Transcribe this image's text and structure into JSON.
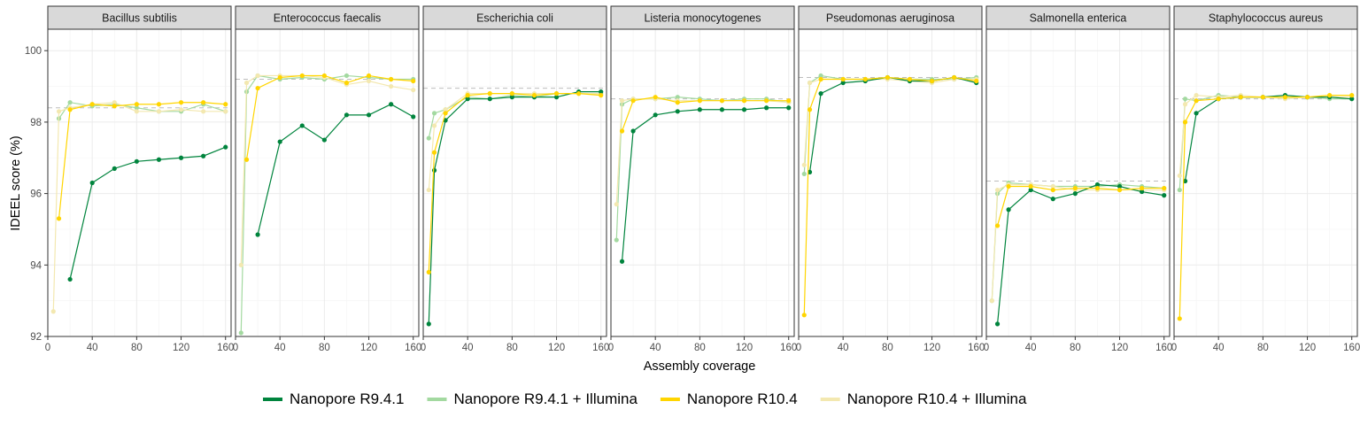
{
  "chart_data": {
    "type": "line",
    "xlabel": "Assembly coverage",
    "ylabel": "IDEEL score (%)",
    "xlim": [
      0,
      165
    ],
    "ylim": [
      92,
      100.6
    ],
    "x_ticks": [
      0,
      40,
      80,
      120,
      160
    ],
    "y_ticks": [
      92,
      94,
      96,
      98,
      100
    ],
    "grid": true,
    "legend_position": "bottom",
    "series_styles": [
      {
        "name": "Nanopore R9.4.1",
        "color": "#00843d"
      },
      {
        "name": "Nanopore R9.4.1 + Illumina",
        "color": "#a3d9a0"
      },
      {
        "name": "Nanopore R10.4",
        "color": "#ffd500"
      },
      {
        "name": "Nanopore R10.4 + Illumina",
        "color": "#f3e8b0"
      }
    ],
    "panels": [
      {
        "title": "Bacillus subtilis",
        "reference": 98.4,
        "series": [
          {
            "x": [
              20,
              40,
              60,
              80,
              100,
              120,
              140,
              160
            ],
            "y": [
              93.6,
              96.3,
              96.7,
              96.9,
              96.95,
              97.0,
              97.05,
              97.3
            ]
          },
          {
            "x": [
              10,
              20,
              40,
              60,
              80,
              100,
              120,
              140,
              160
            ],
            "y": [
              98.1,
              98.55,
              98.45,
              98.5,
              98.4,
              98.3,
              98.3,
              98.5,
              98.3
            ]
          },
          {
            "x": [
              10,
              20,
              40,
              60,
              80,
              100,
              120,
              140,
              160
            ],
            "y": [
              95.3,
              98.35,
              98.5,
              98.45,
              98.5,
              98.5,
              98.55,
              98.55,
              98.5
            ]
          },
          {
            "x": [
              5,
              10,
              20,
              40,
              60,
              80,
              100,
              120,
              140,
              160
            ],
            "y": [
              92.7,
              98.3,
              98.4,
              98.5,
              98.55,
              98.3,
              98.3,
              98.35,
              98.3,
              98.3
            ]
          }
        ]
      },
      {
        "title": "Enterococcus faecalis",
        "reference": 99.2,
        "series": [
          {
            "x": [
              20,
              40,
              60,
              80,
              100,
              120,
              140,
              160
            ],
            "y": [
              94.85,
              97.45,
              97.9,
              97.5,
              98.2,
              98.2,
              98.5,
              98.15
            ]
          },
          {
            "x": [
              5,
              10,
              20,
              40,
              60,
              80,
              100,
              120,
              140,
              160
            ],
            "y": [
              92.1,
              98.85,
              99.3,
              99.2,
              99.25,
              99.2,
              99.3,
              99.25,
              99.2,
              99.2
            ]
          },
          {
            "x": [
              10,
              20,
              40,
              60,
              80,
              100,
              120,
              140,
              160
            ],
            "y": [
              96.95,
              98.95,
              99.25,
              99.3,
              99.3,
              99.1,
              99.3,
              99.2,
              99.15
            ]
          },
          {
            "x": [
              5,
              10,
              20,
              40,
              60,
              80,
              100,
              120,
              140,
              160
            ],
            "y": [
              94.0,
              99.1,
              99.3,
              99.3,
              99.3,
              99.25,
              99.05,
              99.15,
              99.0,
              98.9
            ]
          }
        ]
      },
      {
        "title": "Escherichia coli",
        "reference": 98.95,
        "series": [
          {
            "x": [
              5,
              10,
              20,
              40,
              60,
              80,
              100,
              120,
              140,
              160
            ],
            "y": [
              92.35,
              96.65,
              98.05,
              98.65,
              98.65,
              98.7,
              98.7,
              98.7,
              98.85,
              98.85
            ]
          },
          {
            "x": [
              5,
              10,
              20,
              40,
              60,
              80,
              100,
              120,
              140,
              160
            ],
            "y": [
              97.55,
              98.25,
              98.35,
              98.7,
              98.65,
              98.75,
              98.7,
              98.8,
              98.8,
              98.8
            ]
          },
          {
            "x": [
              5,
              10,
              20,
              40,
              60,
              80,
              100,
              120,
              140,
              160
            ],
            "y": [
              93.8,
              97.15,
              98.25,
              98.75,
              98.8,
              98.8,
              98.75,
              98.8,
              98.8,
              98.75
            ]
          },
          {
            "x": [
              5,
              10,
              20,
              40,
              60,
              80,
              100,
              120,
              140,
              160
            ],
            "y": [
              96.1,
              97.9,
              98.35,
              98.8,
              98.8,
              98.8,
              98.8,
              98.8,
              98.8,
              98.8
            ]
          }
        ]
      },
      {
        "title": "Listeria monocytogenes",
        "reference": 98.65,
        "series": [
          {
            "x": [
              10,
              20,
              40,
              60,
              80,
              100,
              120,
              140,
              160
            ],
            "y": [
              94.1,
              97.75,
              98.2,
              98.3,
              98.35,
              98.35,
              98.35,
              98.4,
              98.4
            ]
          },
          {
            "x": [
              5,
              10,
              20,
              40,
              60,
              80,
              100,
              120,
              140,
              160
            ],
            "y": [
              94.7,
              98.5,
              98.65,
              98.65,
              98.7,
              98.65,
              98.6,
              98.65,
              98.65,
              98.55
            ]
          },
          {
            "x": [
              10,
              20,
              40,
              60,
              80,
              100,
              120,
              140,
              160
            ],
            "y": [
              97.75,
              98.6,
              98.7,
              98.55,
              98.6,
              98.6,
              98.6,
              98.6,
              98.6
            ]
          },
          {
            "x": [
              5,
              10,
              20,
              40,
              60,
              80,
              100,
              120,
              140,
              160
            ],
            "y": [
              95.7,
              98.6,
              98.65,
              98.65,
              98.6,
              98.6,
              98.6,
              98.6,
              98.6,
              98.55
            ]
          }
        ]
      },
      {
        "title": "Pseudomonas aeruginosa",
        "reference": 99.25,
        "series": [
          {
            "x": [
              10,
              20,
              40,
              60,
              80,
              100,
              120,
              140,
              160
            ],
            "y": [
              96.6,
              98.8,
              99.1,
              99.15,
              99.25,
              99.15,
              99.15,
              99.25,
              99.1
            ]
          },
          {
            "x": [
              5,
              10,
              20,
              40,
              60,
              80,
              100,
              120,
              140,
              160
            ],
            "y": [
              96.55,
              99.1,
              99.3,
              99.2,
              99.2,
              99.25,
              99.2,
              99.2,
              99.2,
              99.25
            ]
          },
          {
            "x": [
              5,
              10,
              20,
              40,
              60,
              80,
              100,
              120,
              140,
              160
            ],
            "y": [
              92.6,
              98.35,
              99.2,
              99.2,
              99.2,
              99.25,
              99.2,
              99.15,
              99.25,
              99.15
            ]
          },
          {
            "x": [
              5,
              10,
              20,
              40,
              60,
              80,
              100,
              120,
              140,
              160
            ],
            "y": [
              96.8,
              99.1,
              99.2,
              99.2,
              99.2,
              99.2,
              99.15,
              99.1,
              99.2,
              99.2
            ]
          }
        ]
      },
      {
        "title": "Salmonella enterica",
        "reference": 96.35,
        "series": [
          {
            "x": [
              10,
              20,
              40,
              60,
              80,
              100,
              120,
              140,
              160
            ],
            "y": [
              92.35,
              95.55,
              96.1,
              95.85,
              96.0,
              96.25,
              96.2,
              96.05,
              95.95
            ]
          },
          {
            "x": [
              5,
              10,
              20,
              40,
              60,
              80,
              100,
              120,
              140,
              160
            ],
            "y": [
              93.0,
              96.0,
              96.3,
              96.25,
              96.2,
              96.2,
              96.2,
              96.25,
              96.2,
              96.15
            ]
          },
          {
            "x": [
              10,
              20,
              40,
              60,
              80,
              100,
              120,
              140,
              160
            ],
            "y": [
              95.1,
              96.2,
              96.2,
              96.1,
              96.15,
              96.15,
              96.1,
              96.15,
              96.15
            ]
          },
          {
            "x": [
              5,
              10,
              20,
              40,
              60,
              80,
              100,
              120,
              140,
              160
            ],
            "y": [
              93.0,
              96.1,
              96.25,
              96.25,
              96.2,
              96.1,
              96.1,
              96.1,
              96.1,
              96.1
            ]
          }
        ]
      },
      {
        "title": "Staphylococcus aureus",
        "reference": 98.65,
        "series": [
          {
            "x": [
              10,
              20,
              40,
              60,
              80,
              100,
              120,
              140,
              160
            ],
            "y": [
              96.35,
              98.25,
              98.65,
              98.7,
              98.7,
              98.75,
              98.7,
              98.7,
              98.65
            ]
          },
          {
            "x": [
              5,
              10,
              20,
              40,
              60,
              80,
              100,
              120,
              140,
              160
            ],
            "y": [
              96.1,
              98.65,
              98.6,
              98.75,
              98.7,
              98.7,
              98.7,
              98.7,
              98.65,
              98.65
            ]
          },
          {
            "x": [
              5,
              10,
              20,
              40,
              60,
              80,
              100,
              120,
              140,
              160
            ],
            "y": [
              92.5,
              98.0,
              98.6,
              98.65,
              98.7,
              98.7,
              98.7,
              98.7,
              98.75,
              98.75
            ]
          },
          {
            "x": [
              5,
              10,
              20,
              40,
              60,
              80,
              100,
              120,
              140,
              160
            ],
            "y": [
              96.5,
              98.5,
              98.75,
              98.7,
              98.75,
              98.7,
              98.65,
              98.7,
              98.7,
              98.7
            ]
          }
        ]
      }
    ]
  }
}
